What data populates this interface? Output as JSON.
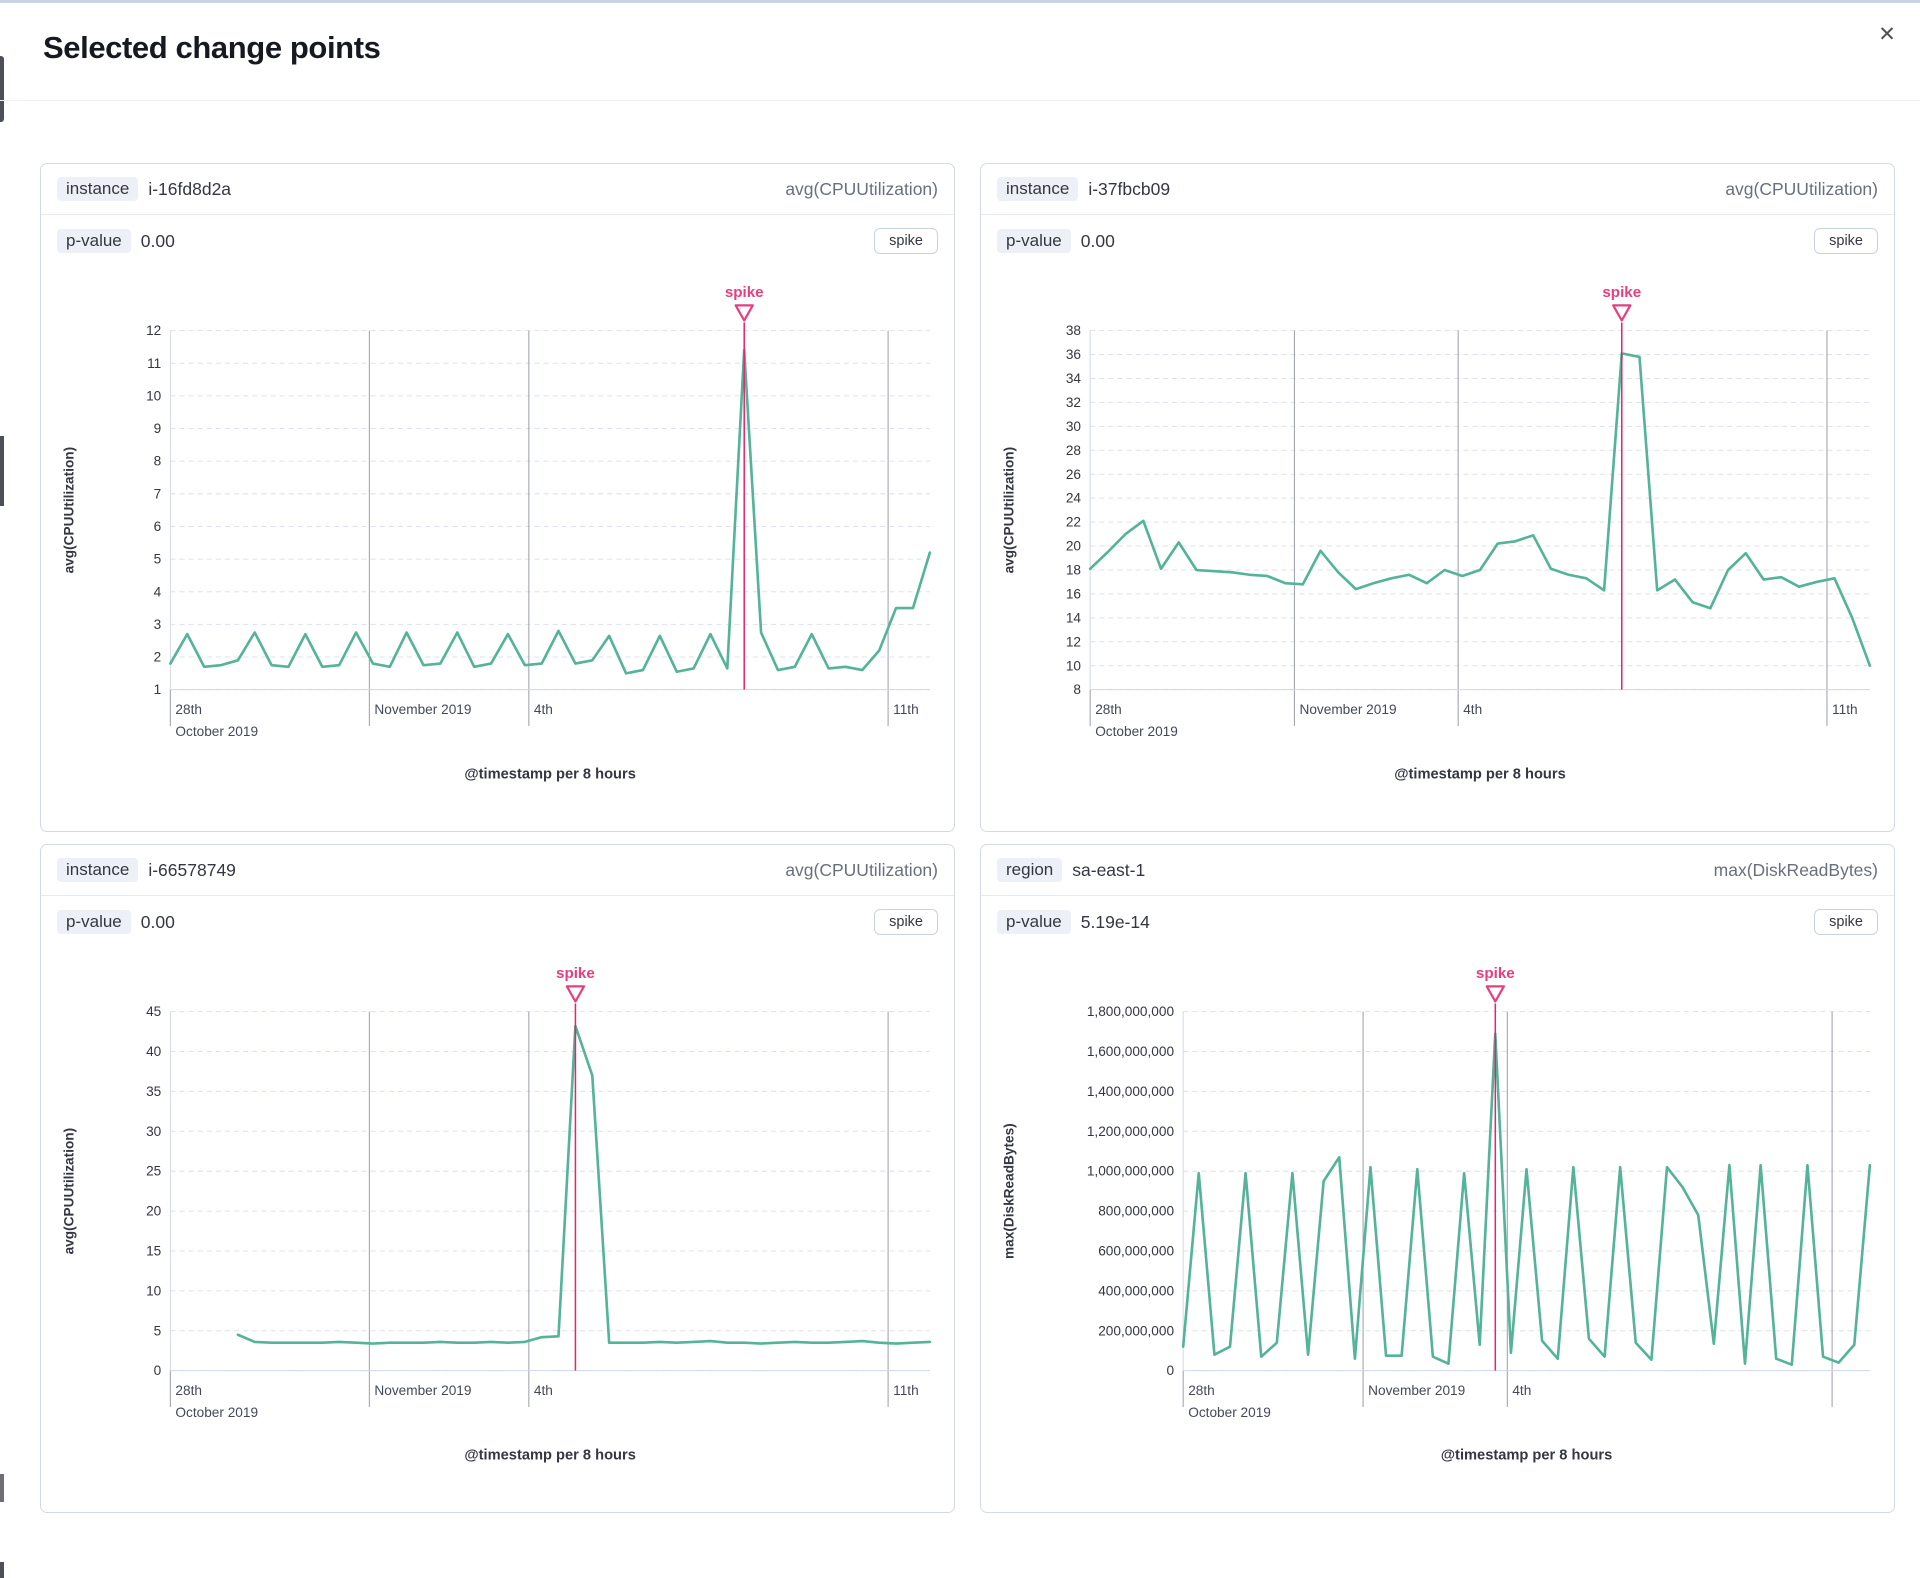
{
  "modal": {
    "title": "Selected change points",
    "close_icon": "✕"
  },
  "colors": {
    "series_green": "#54b399",
    "annotation_pink": "#e53f80",
    "annotation_line_pink": "#e7256b",
    "grid_dashed": "#dde1ec",
    "grid_event": "#9b9fa9",
    "axis_line": "#d3dae6",
    "text_dark": "#343741",
    "text_axis": "#434956",
    "text_muted": "#69707d",
    "badge_bg": "#eef0f8",
    "panel_border": "#d3dae6"
  },
  "panels": [
    {
      "field_badge": "instance",
      "field_value": "i-16fd8d2a",
      "metric": "avg(CPUUtilization)",
      "pvalue_badge": "p-value",
      "pvalue": "0.00",
      "type_label": "spike"
    },
    {
      "field_badge": "instance",
      "field_value": "i-37fbcb09",
      "metric": "avg(CPUUtilization)",
      "pvalue_badge": "p-value",
      "pvalue": "0.00",
      "type_label": "spike"
    },
    {
      "field_badge": "instance",
      "field_value": "i-66578749",
      "metric": "avg(CPUUtilization)",
      "pvalue_badge": "p-value",
      "pvalue": "0.00",
      "type_label": "spike"
    },
    {
      "field_badge": "region",
      "field_value": "sa-east-1",
      "metric": "max(DiskReadBytes)",
      "pvalue_badge": "p-value",
      "pvalue": "5.19e-14",
      "type_label": "spike"
    }
  ],
  "chart_data": [
    {
      "type": "line",
      "name": "i-16fd8d2a",
      "ylabel": "avg(CPUUtilization)",
      "xlabel": "@timestamp per 8 hours",
      "ylim": [
        1,
        12
      ],
      "yticks": [
        1,
        2,
        3,
        4,
        5,
        6,
        7,
        8,
        9,
        10,
        11,
        12
      ],
      "comma_format": false,
      "grid": true,
      "annotation": {
        "label": "spike",
        "index": 34
      },
      "x_marks": [
        {
          "frac": 0.0,
          "line1": "28th",
          "line2": "October 2019"
        },
        {
          "frac": 0.262,
          "line1": "November 2019",
          "line2": ""
        },
        {
          "frac": 0.472,
          "line1": "4th",
          "line2": ""
        },
        {
          "frac": 0.945,
          "line1": "11th",
          "line2": ""
        }
      ],
      "values": [
        1.8,
        2.7,
        1.7,
        1.75,
        1.9,
        2.75,
        1.75,
        1.7,
        2.7,
        1.7,
        1.75,
        2.75,
        1.8,
        1.7,
        2.75,
        1.75,
        1.8,
        2.75,
        1.7,
        1.8,
        2.7,
        1.75,
        1.8,
        2.8,
        1.8,
        1.9,
        2.65,
        1.5,
        1.6,
        2.65,
        1.55,
        1.65,
        2.7,
        1.65,
        11.4,
        2.75,
        1.6,
        1.7,
        2.7,
        1.65,
        1.7,
        1.6,
        2.2,
        3.5,
        3.5,
        5.2
      ]
    },
    {
      "type": "line",
      "name": "i-37fbcb09",
      "ylabel": "avg(CPUUtilization)",
      "xlabel": "@timestamp per 8 hours",
      "ylim": [
        8,
        38
      ],
      "yticks": [
        8,
        10,
        12,
        14,
        16,
        18,
        20,
        22,
        24,
        26,
        28,
        30,
        32,
        34,
        36,
        38
      ],
      "comma_format": false,
      "grid": true,
      "annotation": {
        "label": "spike",
        "index": 30
      },
      "x_marks": [
        {
          "frac": 0.0,
          "line1": "28th",
          "line2": "October 2019"
        },
        {
          "frac": 0.262,
          "line1": "November 2019",
          "line2": ""
        },
        {
          "frac": 0.472,
          "line1": "4th",
          "line2": ""
        },
        {
          "frac": 0.945,
          "line1": "11th",
          "line2": ""
        }
      ],
      "values": [
        18.1,
        19.5,
        21.0,
        22.1,
        18.1,
        20.3,
        18.0,
        17.9,
        17.8,
        17.6,
        17.5,
        16.9,
        16.8,
        19.6,
        17.8,
        16.4,
        16.9,
        17.3,
        17.6,
        16.9,
        18.0,
        17.5,
        18.0,
        20.2,
        20.4,
        20.9,
        18.1,
        17.6,
        17.3,
        16.3,
        36.1,
        35.8,
        16.3,
        17.2,
        15.3,
        14.8,
        18.0,
        19.4,
        17.2,
        17.4,
        16.6,
        17.0,
        17.3,
        14.0,
        10.0
      ]
    },
    {
      "type": "line",
      "name": "i-66578749",
      "ylabel": "avg(CPUUtilization)",
      "xlabel": "@timestamp per 8 hours",
      "ylim": [
        0,
        45
      ],
      "yticks": [
        0,
        5,
        10,
        15,
        20,
        25,
        30,
        35,
        40,
        45
      ],
      "comma_format": false,
      "grid": true,
      "annotation": {
        "label": "spike",
        "index": 24
      },
      "x_marks": [
        {
          "frac": 0.0,
          "line1": "28th",
          "line2": "October 2019"
        },
        {
          "frac": 0.262,
          "line1": "November 2019",
          "line2": ""
        },
        {
          "frac": 0.472,
          "line1": "4th",
          "line2": ""
        },
        {
          "frac": 0.945,
          "line1": "11th",
          "line2": ""
        }
      ],
      "values": [
        null,
        null,
        null,
        null,
        4.5,
        3.6,
        3.5,
        3.5,
        3.5,
        3.5,
        3.6,
        3.5,
        3.4,
        3.5,
        3.5,
        3.5,
        3.6,
        3.5,
        3.5,
        3.6,
        3.5,
        3.6,
        4.2,
        4.3,
        43.2,
        37.0,
        3.5,
        3.5,
        3.5,
        3.6,
        3.5,
        3.6,
        3.7,
        3.5,
        3.5,
        3.4,
        3.5,
        3.6,
        3.5,
        3.5,
        3.6,
        3.7,
        3.5,
        3.4,
        3.5,
        3.6
      ]
    },
    {
      "type": "line",
      "name": "sa-east-1",
      "ylabel": "max(DiskReadBytes)",
      "xlabel": "@timestamp per 8 hours",
      "ylim": [
        0,
        1800000000
      ],
      "yticks": [
        0,
        200000000,
        400000000,
        600000000,
        800000000,
        1000000000,
        1200000000,
        1400000000,
        1600000000,
        1800000000
      ],
      "comma_format": true,
      "grid": true,
      "annotation": {
        "label": "spike",
        "index": 20
      },
      "x_marks": [
        {
          "frac": 0.0,
          "line1": "28th",
          "line2": "October 2019"
        },
        {
          "frac": 0.262,
          "line1": "November 2019",
          "line2": ""
        },
        {
          "frac": 0.472,
          "line1": "4th",
          "line2": ""
        },
        {
          "frac": 0.945,
          "line1": "",
          "line2": ""
        }
      ],
      "values": [
        120000000,
        990000000,
        80000000,
        120000000,
        990000000,
        70000000,
        140000000,
        990000000,
        80000000,
        950000000,
        1070000000,
        60000000,
        1020000000,
        75000000,
        75000000,
        1010000000,
        70000000,
        35000000,
        990000000,
        130000000,
        1690000000,
        90000000,
        1010000000,
        150000000,
        60000000,
        1020000000,
        160000000,
        70000000,
        1020000000,
        140000000,
        55000000,
        1020000000,
        920000000,
        780000000,
        135000000,
        1030000000,
        35000000,
        1030000000,
        60000000,
        30000000,
        1030000000,
        70000000,
        40000000,
        130000000,
        1030000000
      ]
    }
  ]
}
